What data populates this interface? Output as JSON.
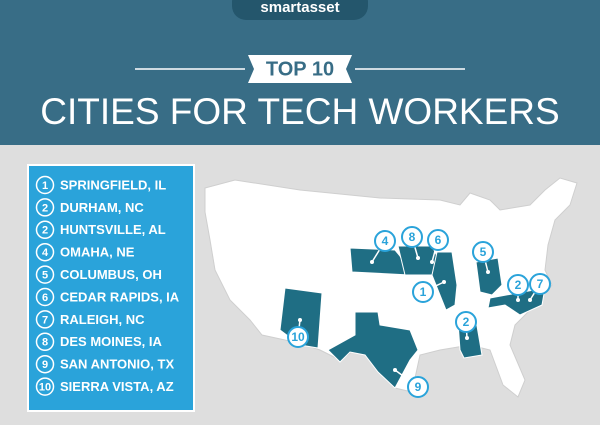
{
  "header": {
    "logo": "smartasset",
    "badge": "TOP 10",
    "title": "CITIES FOR TECH WORKERS"
  },
  "list": [
    {
      "rank": "1",
      "city": "SPRINGFIELD, IL"
    },
    {
      "rank": "2",
      "city": "DURHAM, NC"
    },
    {
      "rank": "2",
      "city": "HUNTSVILLE, AL"
    },
    {
      "rank": "4",
      "city": "OMAHA, NE"
    },
    {
      "rank": "5",
      "city": "COLUMBUS, OH"
    },
    {
      "rank": "6",
      "city": "CEDAR RAPIDS, IA"
    },
    {
      "rank": "7",
      "city": "RALEIGH, NC"
    },
    {
      "rank": "8",
      "city": "DES MOINES, IA"
    },
    {
      "rank": "9",
      "city": "SAN ANTONIO, TX"
    },
    {
      "rank": "10",
      "city": "SIERRA VISTA, AZ"
    }
  ],
  "map": {
    "markers": [
      "4",
      "8",
      "6",
      "5",
      "1",
      "2",
      "7",
      "2",
      "10",
      "9"
    ]
  }
}
